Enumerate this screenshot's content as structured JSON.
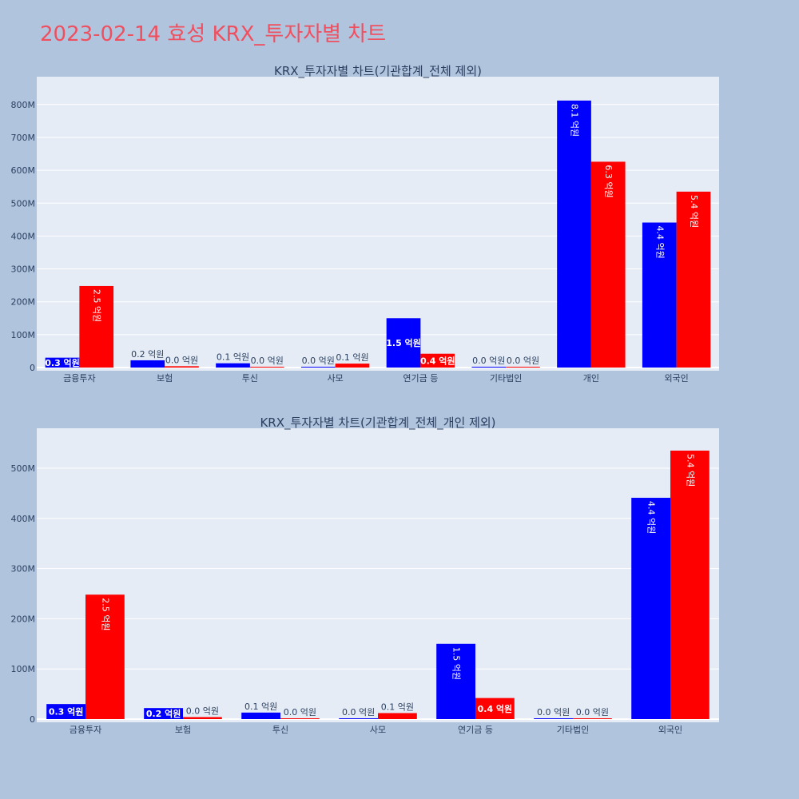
{
  "page_title": "2023-02-14 효성 KRX_투자자별 차트",
  "colors": {
    "buy": "#0000ff",
    "sell": "#ff0000",
    "plot_bg": "#e5ecf6",
    "page_bg": "#b0c4de",
    "title": "#ef5060"
  },
  "chart_data": [
    {
      "type": "bar",
      "title": "KRX_투자자별 차트(기관합계_전체 제외)",
      "categories": [
        "금융투자",
        "보험",
        "투신",
        "사모",
        "연기금 등",
        "기타법인",
        "개인",
        "외국인"
      ],
      "series": [
        {
          "name": "buy",
          "color": "#0000ff",
          "values": [
            30000000,
            22000000,
            13000000,
            1000000,
            150000000,
            1000000,
            812000000,
            441000000
          ],
          "labels": [
            "0.3 억원",
            "0.2 억원",
            "0.1 억원",
            "0.0 억원",
            "1.5 억원",
            "0.0 억원",
            "8.1 억원",
            "4.4 억원"
          ]
        },
        {
          "name": "sell",
          "color": "#ff0000",
          "values": [
            248000000,
            4000000,
            1000000,
            12000000,
            42000000,
            1000000,
            626000000,
            535000000
          ],
          "labels": [
            "2.5 억원",
            "0.0 억원",
            "0.0 억원",
            "0.1 억원",
            "0.4 억원",
            "0.0 억원",
            "6.3 억원",
            "5.4 억원"
          ]
        }
      ],
      "yticks": [
        0,
        100000000,
        200000000,
        300000000,
        400000000,
        500000000,
        600000000,
        700000000,
        800000000
      ],
      "ytick_labels": [
        "0",
        "100M",
        "200M",
        "300M",
        "400M",
        "500M",
        "600M",
        "700M",
        "800M"
      ],
      "ylim": [
        0,
        870000000
      ]
    },
    {
      "type": "bar",
      "title": "KRX_투자자별 차트(기관합계_전체_개인 제외)",
      "categories": [
        "금융투자",
        "보험",
        "투신",
        "사모",
        "연기금 등",
        "기타법인",
        "외국인"
      ],
      "series": [
        {
          "name": "buy",
          "color": "#0000ff",
          "values": [
            30000000,
            22000000,
            13000000,
            1000000,
            150000000,
            1000000,
            441000000
          ],
          "labels": [
            "0.3 억원",
            "0.2 억원",
            "0.1 억원",
            "0.0 억원",
            "1.5 억원",
            "0.0 억원",
            "4.4 억원"
          ]
        },
        {
          "name": "sell",
          "color": "#ff0000",
          "values": [
            248000000,
            4000000,
            1000000,
            12000000,
            42000000,
            1000000,
            535000000
          ],
          "labels": [
            "2.5 억원",
            "0.0 억원",
            "0.0 억원",
            "0.1 억원",
            "0.4 억원",
            "0.0 억원",
            "5.4 억원"
          ]
        }
      ],
      "yticks": [
        0,
        100000000,
        200000000,
        300000000,
        400000000,
        500000000
      ],
      "ytick_labels": [
        "0",
        "100M",
        "200M",
        "300M",
        "400M",
        "500M"
      ],
      "ylim": [
        0,
        570000000
      ]
    }
  ]
}
